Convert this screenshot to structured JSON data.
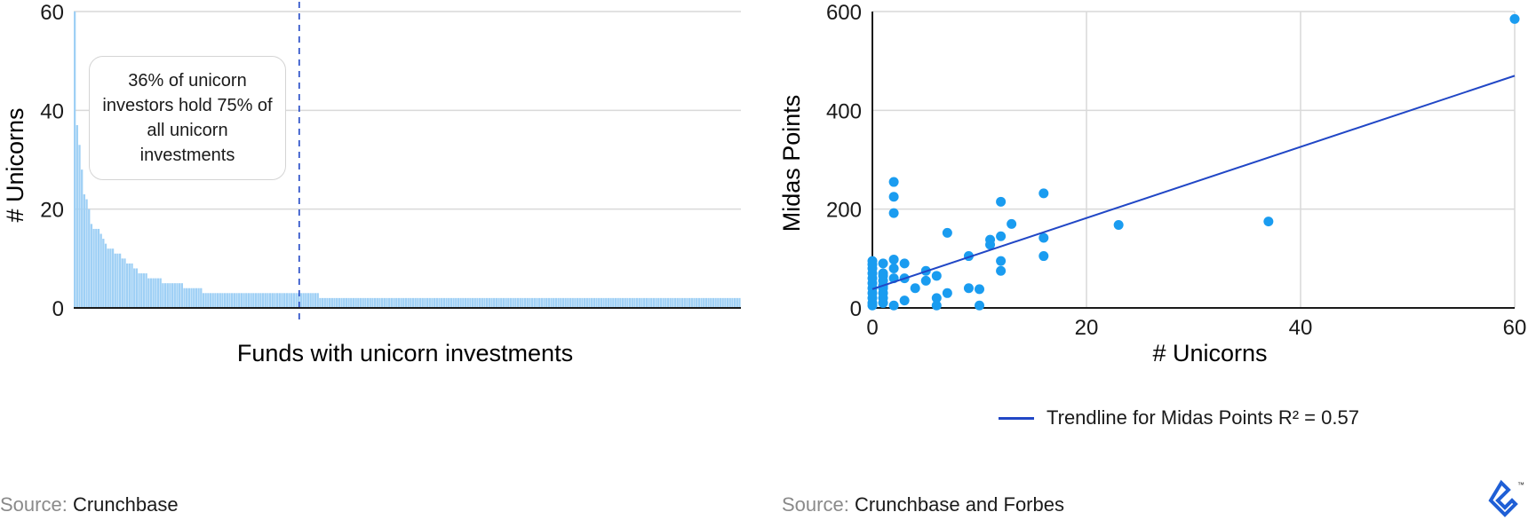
{
  "colors": {
    "bar": "#9fd0f5",
    "dot": "#1a9cf0",
    "trend": "#2147c6",
    "dashed": "#2147c6",
    "grid": "#d9d9d9",
    "logo": "#1f5fd6"
  },
  "chart_data": [
    {
      "type": "bar",
      "xlabel": "Funds with unicorn investments",
      "ylabel": "# Unicorns",
      "ylim": [
        0,
        60
      ],
      "yticks": [
        "0",
        "20",
        "40",
        "60"
      ],
      "grid": true,
      "bar_count": 280,
      "values_sorted_desc": [
        60,
        37,
        33,
        28,
        23,
        22,
        20,
        17,
        16,
        16,
        16,
        15,
        14,
        13,
        12,
        12,
        12,
        11,
        11,
        11,
        10,
        10,
        9,
        9,
        9,
        8,
        8,
        7,
        7,
        7,
        7,
        6,
        6,
        6,
        6,
        6,
        6,
        5,
        5,
        5,
        5,
        5,
        5,
        5,
        5,
        5,
        4,
        4,
        4,
        4,
        4,
        4,
        4,
        4,
        3,
        3,
        3,
        3,
        3,
        3,
        3,
        3,
        3,
        3,
        3,
        3,
        3,
        3,
        3,
        3,
        3,
        3,
        3,
        3,
        3,
        3,
        3,
        3,
        3,
        3,
        3,
        3,
        3,
        3,
        3,
        3,
        3,
        3,
        3,
        3,
        3,
        3,
        3,
        3,
        3,
        3,
        3,
        3,
        3,
        3,
        3,
        3,
        3,
        2,
        2,
        2,
        2,
        2,
        2,
        2,
        2,
        2,
        2,
        2,
        2,
        2,
        2,
        2,
        2,
        2,
        2,
        2,
        2,
        2,
        2,
        2,
        2,
        2,
        2,
        2,
        2,
        2,
        2,
        2,
        2,
        2,
        2,
        2,
        2,
        2,
        2,
        2,
        2,
        2,
        2,
        2,
        2,
        2,
        2,
        2,
        2,
        2,
        2,
        2,
        2,
        2,
        2,
        2,
        2,
        2,
        2,
        2,
        2,
        2,
        2,
        2,
        2,
        2,
        2,
        2,
        2,
        2,
        2,
        2,
        2,
        2,
        2,
        2,
        2,
        2,
        2,
        2,
        2,
        2,
        2,
        2,
        2,
        2,
        2,
        2,
        2,
        2,
        2,
        2,
        2,
        2,
        2,
        2,
        2,
        2,
        2,
        2,
        2,
        2,
        2,
        2,
        2,
        2,
        2,
        2,
        2,
        2,
        2,
        2,
        2,
        2,
        2,
        2,
        2,
        2,
        2,
        2,
        2,
        2,
        2,
        2,
        2,
        2,
        2,
        2,
        2,
        2,
        2,
        2,
        2,
        2,
        2,
        2,
        2,
        2,
        2,
        2,
        2,
        2,
        2,
        2,
        2,
        2,
        2,
        2,
        2,
        2,
        2,
        2,
        2,
        2,
        2,
        2,
        2,
        2,
        2,
        2,
        2,
        2,
        2,
        2,
        2,
        2,
        2,
        2,
        2,
        2,
        2,
        2,
        2,
        2,
        2,
        2,
        2,
        2,
        2,
        2,
        2,
        2,
        2,
        2,
        2,
        2,
        2,
        2,
        2,
        2
      ],
      "divider_fraction": 0.338,
      "annotation": "36% of unicorn investors hold 75% of all unicorn investments",
      "source_label": "Source:",
      "source": "Crunchbase"
    },
    {
      "type": "scatter",
      "xlabel": "# Unicorns",
      "ylabel": "Midas Points",
      "xlim": [
        0,
        60
      ],
      "ylim": [
        0,
        600
      ],
      "xticks": [
        "0",
        "20",
        "40",
        "60"
      ],
      "yticks": [
        "0",
        "200",
        "400",
        "600"
      ],
      "grid": true,
      "points": [
        [
          0,
          95
        ],
        [
          0,
          88
        ],
        [
          0,
          80
        ],
        [
          0,
          70
        ],
        [
          0,
          60
        ],
        [
          0,
          50
        ],
        [
          0,
          40
        ],
        [
          0,
          30
        ],
        [
          0,
          20
        ],
        [
          0,
          10
        ],
        [
          0,
          5
        ],
        [
          1,
          90
        ],
        [
          1,
          70
        ],
        [
          1,
          65
        ],
        [
          1,
          55
        ],
        [
          1,
          45
        ],
        [
          1,
          40
        ],
        [
          1,
          30
        ],
        [
          1,
          20
        ],
        [
          1,
          10
        ],
        [
          2,
          255
        ],
        [
          2,
          225
        ],
        [
          2,
          192
        ],
        [
          2,
          98
        ],
        [
          2,
          80
        ],
        [
          2,
          60
        ],
        [
          2,
          5
        ],
        [
          3,
          90
        ],
        [
          3,
          60
        ],
        [
          3,
          15
        ],
        [
          4,
          40
        ],
        [
          5,
          75
        ],
        [
          5,
          55
        ],
        [
          6,
          65
        ],
        [
          6,
          20
        ],
        [
          6,
          5
        ],
        [
          7,
          152
        ],
        [
          7,
          30
        ],
        [
          9,
          105
        ],
        [
          9,
          40
        ],
        [
          10,
          38
        ],
        [
          10,
          5
        ],
        [
          11,
          138
        ],
        [
          11,
          128
        ],
        [
          12,
          215
        ],
        [
          12,
          145
        ],
        [
          12,
          95
        ],
        [
          12,
          75
        ],
        [
          13,
          170
        ],
        [
          16,
          232
        ],
        [
          16,
          142
        ],
        [
          16,
          105
        ],
        [
          23,
          168
        ],
        [
          37,
          175
        ],
        [
          60,
          585
        ]
      ],
      "trendline": {
        "label": "Trendline for Midas Points R² = 0.57",
        "x": [
          0,
          60
        ],
        "y": [
          38,
          470
        ]
      },
      "legend_position": "bottom-center",
      "source_label": "Source:",
      "source": "Crunchbase and Forbes"
    }
  ]
}
